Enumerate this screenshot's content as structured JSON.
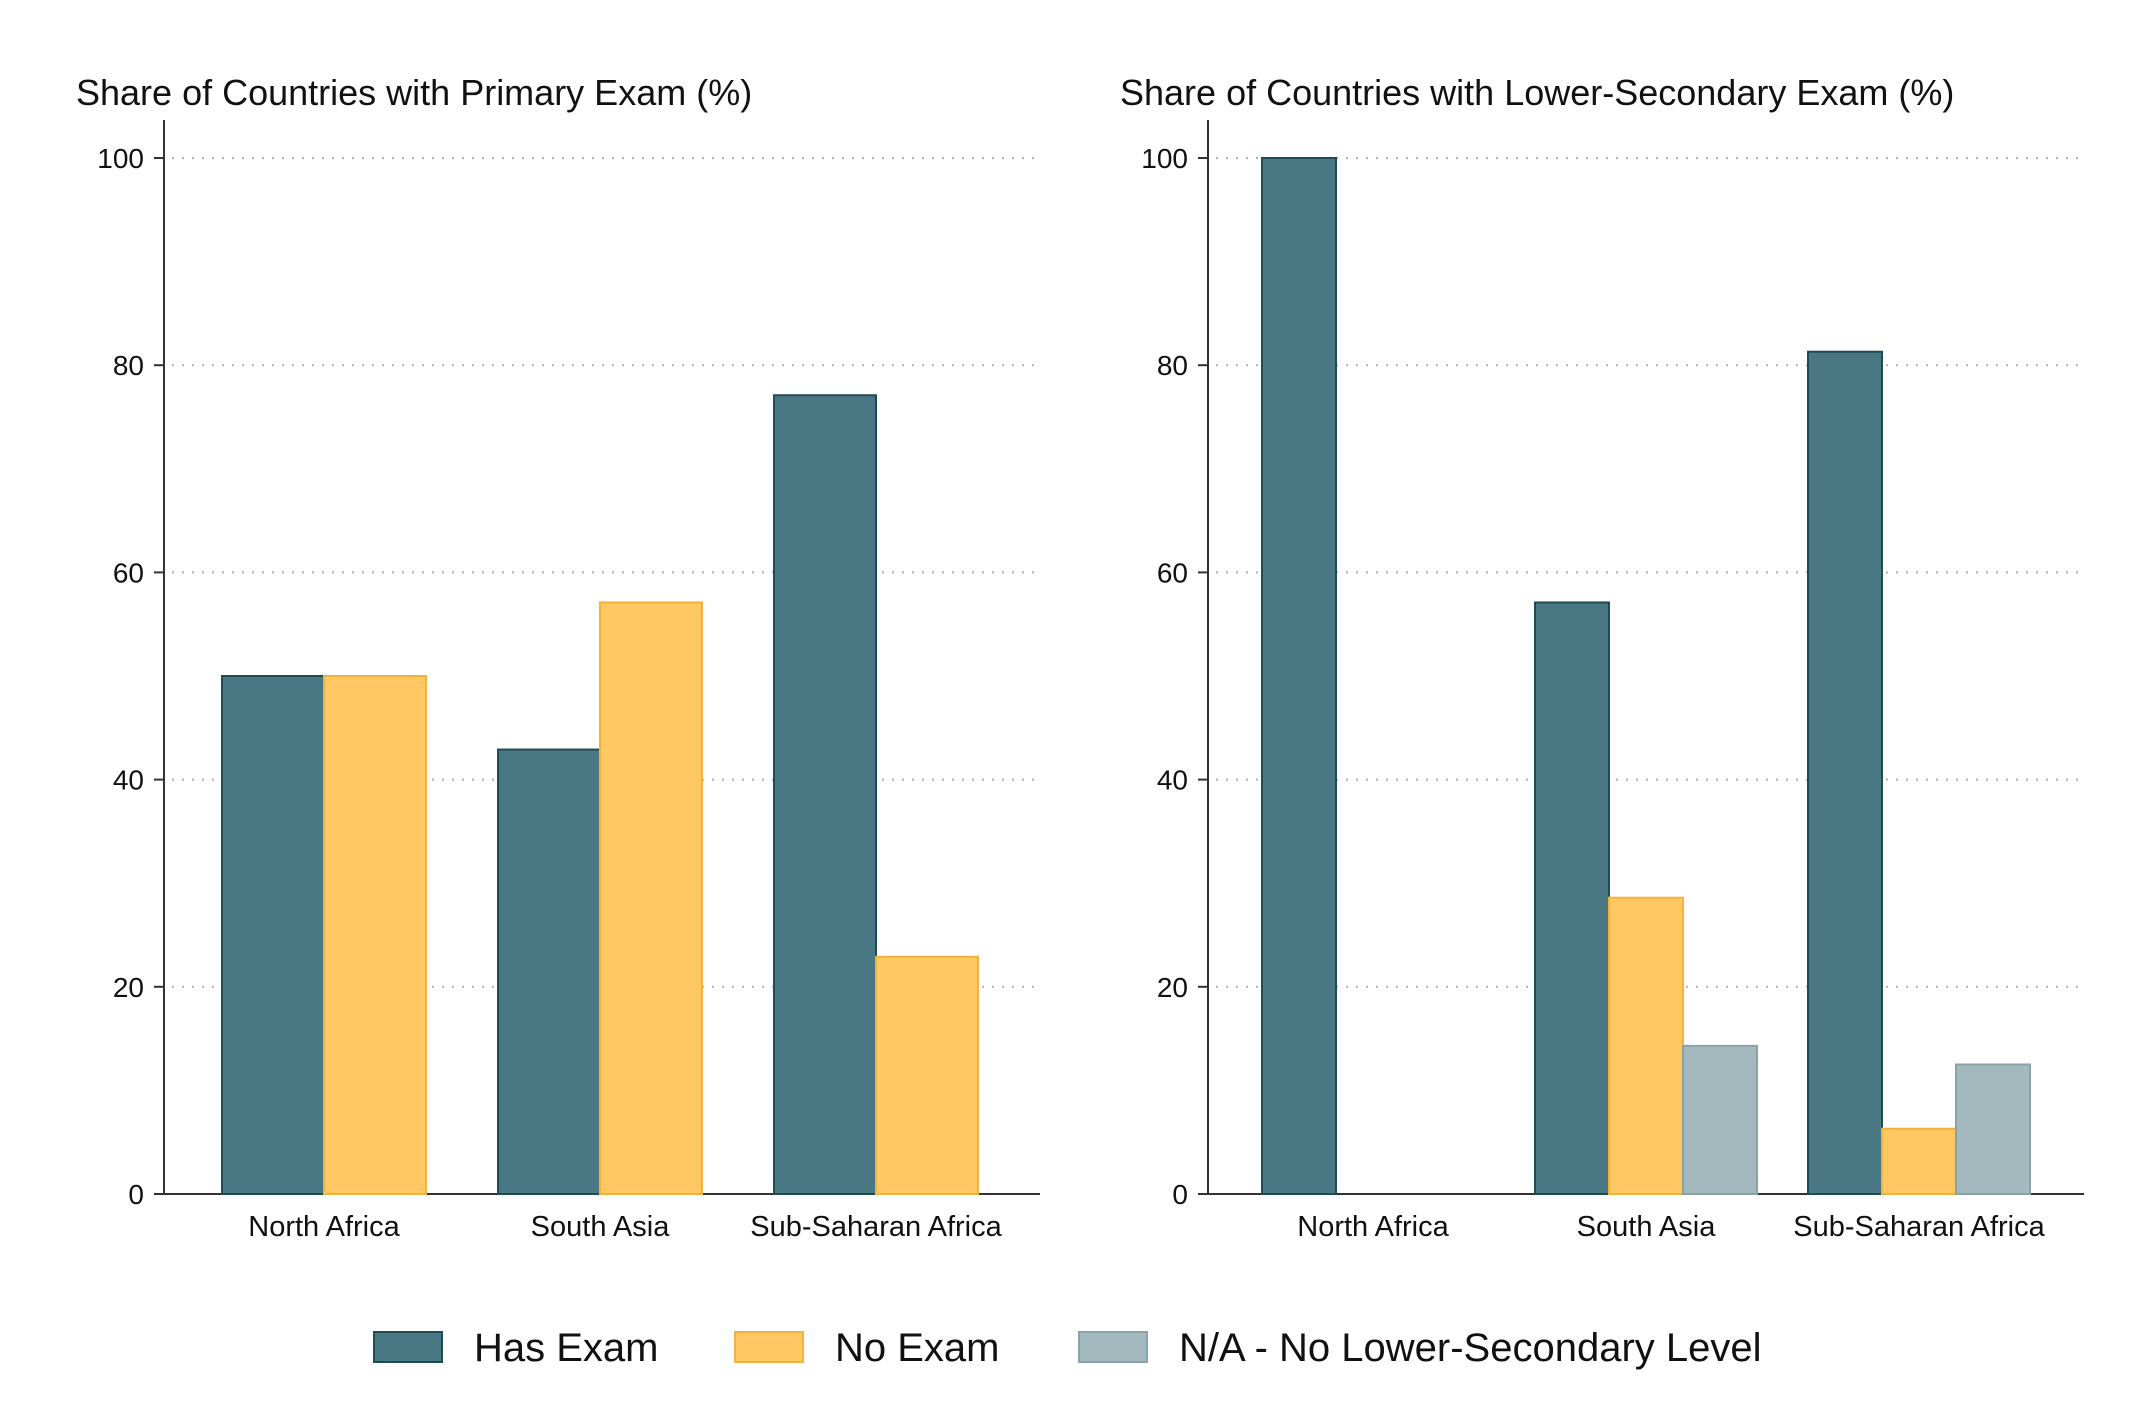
{
  "colors": {
    "has_exam": "#497884",
    "has_exam_stroke": "#1f4b55",
    "no_exam": "#ffc862",
    "no_exam_stroke": "#f3b23a",
    "na": "#a4b9be",
    "na_stroke": "#8aa3a9",
    "axis": "#333333",
    "grid": "#b0b0b0"
  },
  "chart_data": [
    {
      "type": "bar",
      "title": "Share of Countries with Primary Exam (%)",
      "xlabel": "",
      "ylabel": "",
      "ylim": [
        0,
        100
      ],
      "yticks": [
        "0",
        "20",
        "40",
        "60",
        "80",
        "100"
      ],
      "grid": true,
      "categories": [
        "North Africa",
        "South Asia",
        "Sub-Saharan Africa"
      ],
      "series": [
        {
          "name": "Has Exam",
          "color_key": "has_exam",
          "values": [
            50,
            42.9,
            77.1
          ]
        },
        {
          "name": "No Exam",
          "color_key": "no_exam",
          "values": [
            50,
            57.1,
            22.9
          ]
        }
      ]
    },
    {
      "type": "bar",
      "title": "Share of Countries with Lower-Secondary Exam (%)",
      "xlabel": "",
      "ylabel": "",
      "ylim": [
        0,
        100
      ],
      "yticks": [
        "0",
        "20",
        "40",
        "60",
        "80",
        "100"
      ],
      "grid": true,
      "categories": [
        "North Africa",
        "South Asia",
        "Sub-Saharan Africa"
      ],
      "series": [
        {
          "name": "Has Exam",
          "color_key": "has_exam",
          "values": [
            100,
            57.1,
            81.3
          ]
        },
        {
          "name": "No Exam",
          "color_key": "no_exam",
          "values": [
            0,
            28.6,
            6.3
          ]
        },
        {
          "name": "N/A - No Lower-Secondary Level",
          "color_key": "na",
          "values": [
            0,
            14.3,
            12.5
          ]
        }
      ]
    }
  ],
  "legend": {
    "placement": "bottom",
    "items": [
      {
        "label": "Has Exam",
        "color_key": "has_exam"
      },
      {
        "label": "No Exam",
        "color_key": "no_exam"
      },
      {
        "label": "N/A - No Lower-Secondary Level",
        "color_key": "na"
      }
    ]
  }
}
